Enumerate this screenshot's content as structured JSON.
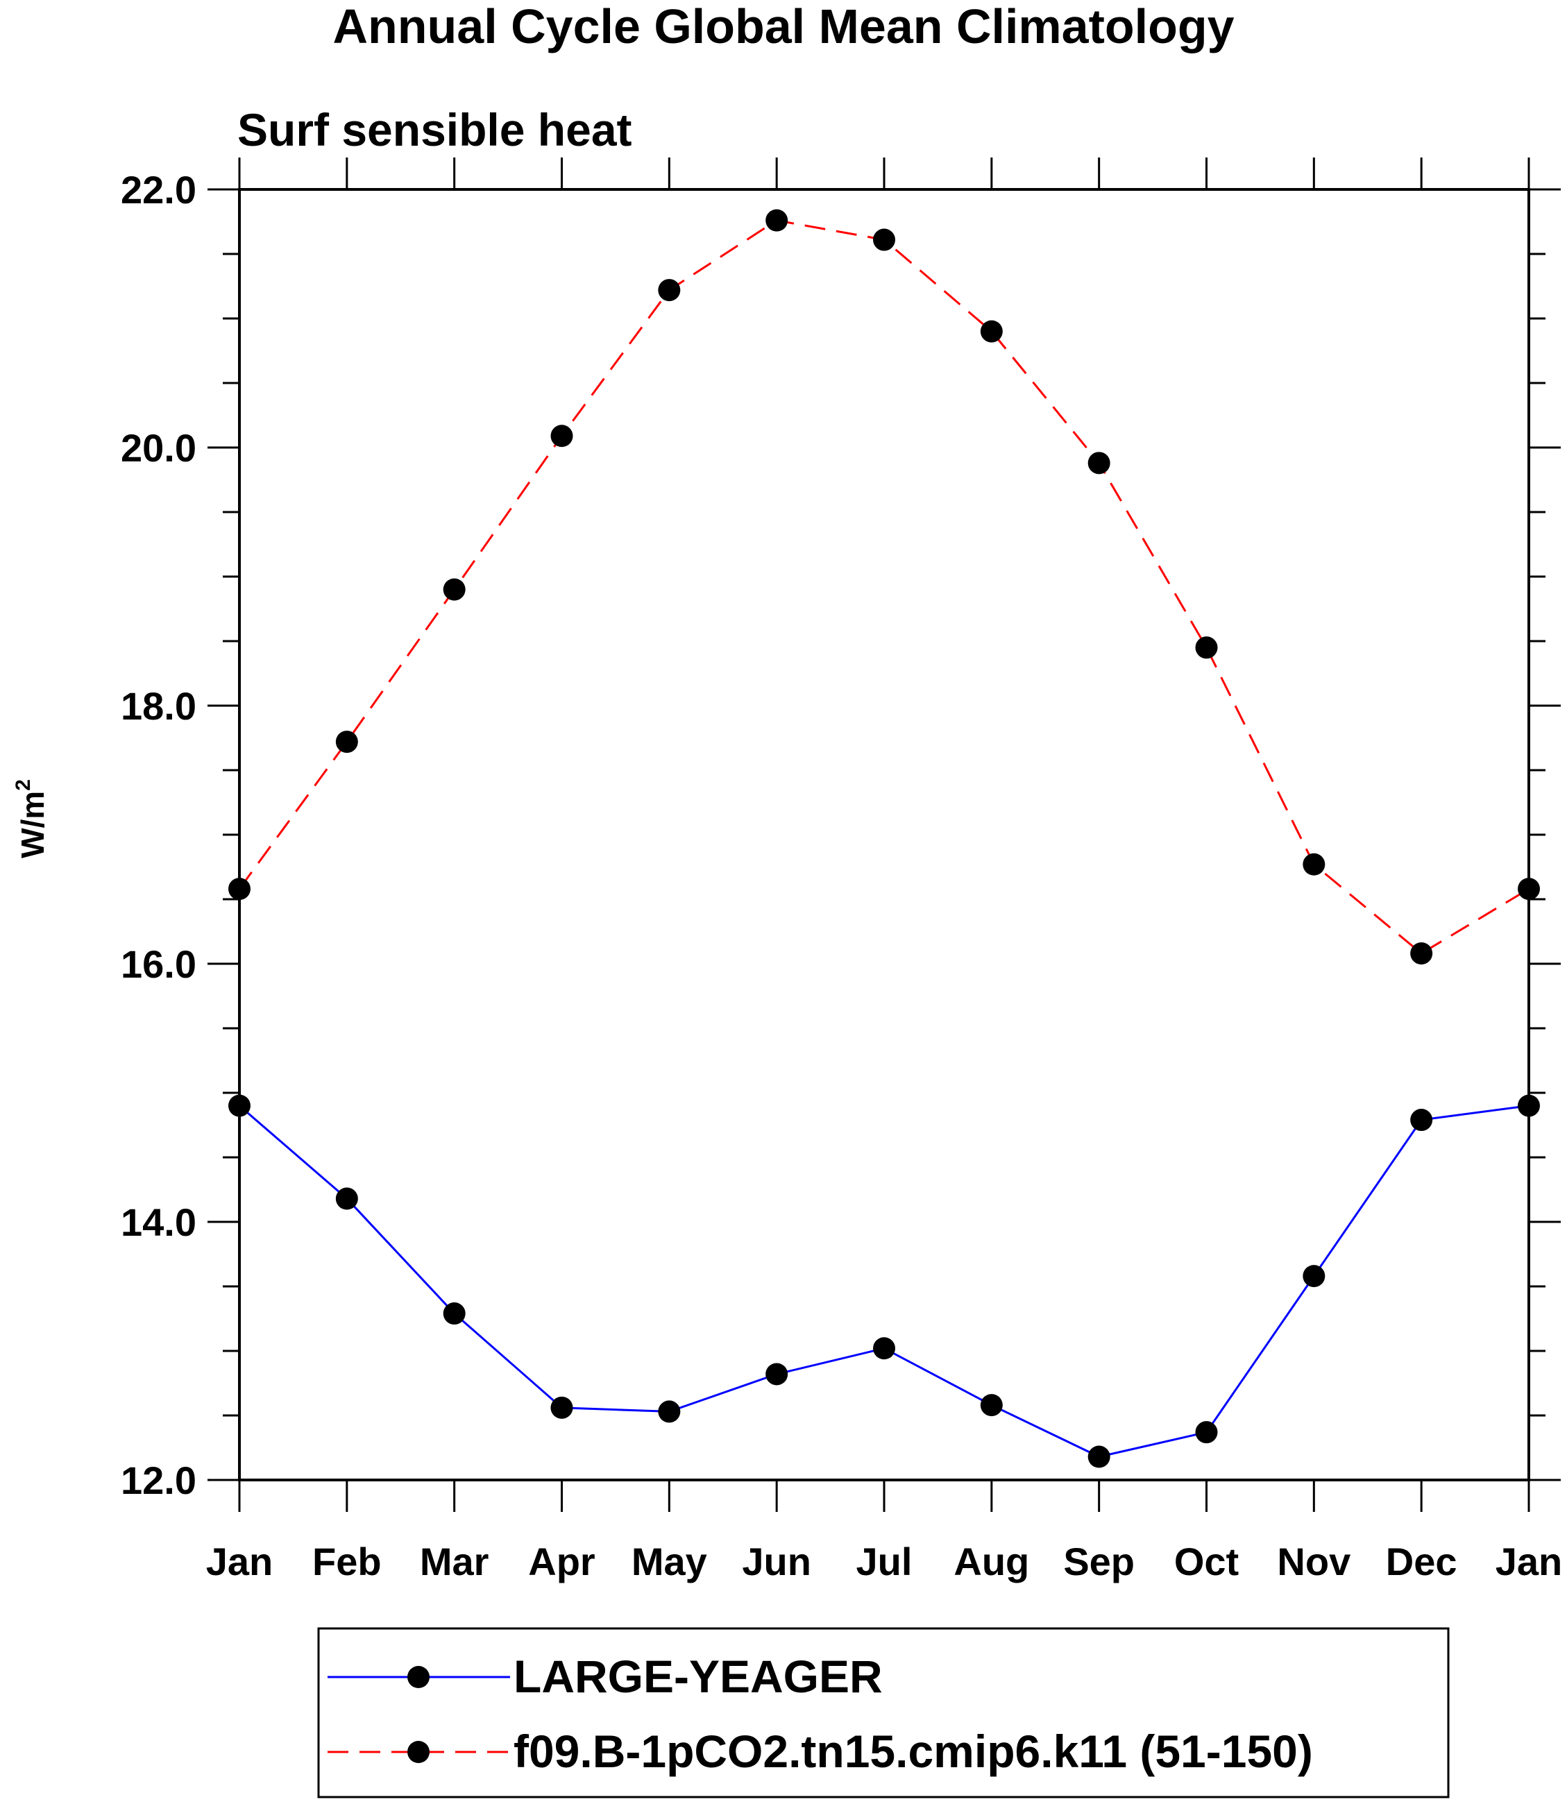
{
  "chart_data": {
    "type": "line",
    "title": "Annual Cycle Global Mean Climatology",
    "subtitle": "Surf sensible heat",
    "ylabel_base": "W/m",
    "ylabel_sup": "2",
    "categories": [
      "Jan",
      "Feb",
      "Mar",
      "Apr",
      "May",
      "Jun",
      "Jul",
      "Aug",
      "Sep",
      "Oct",
      "Nov",
      "Dec",
      "Jan"
    ],
    "ylim": [
      12.0,
      22.0
    ],
    "yticks": [
      12.0,
      14.0,
      16.0,
      18.0,
      20.0,
      22.0
    ],
    "ytick_labels": [
      "12.0",
      "14.0",
      "16.0",
      "18.0",
      "20.0",
      "22.0"
    ],
    "y_minor_step": 0.5,
    "legend_position": "bottom-center",
    "series": [
      {
        "name": "LARGE-YEAGER",
        "color": "#0000ff",
        "style": "solid",
        "values": [
          14.9,
          14.18,
          13.29,
          12.56,
          12.53,
          12.82,
          13.02,
          12.58,
          12.18,
          12.37,
          13.58,
          14.79,
          14.9
        ]
      },
      {
        "name": "f09.B-1pCO2.tn15.cmip6.k11 (51-150)",
        "color": "#ff0000",
        "style": "dashed",
        "values": [
          16.58,
          17.72,
          18.9,
          20.09,
          21.22,
          21.76,
          21.61,
          20.9,
          19.88,
          18.45,
          16.77,
          16.08,
          16.58
        ]
      }
    ]
  }
}
